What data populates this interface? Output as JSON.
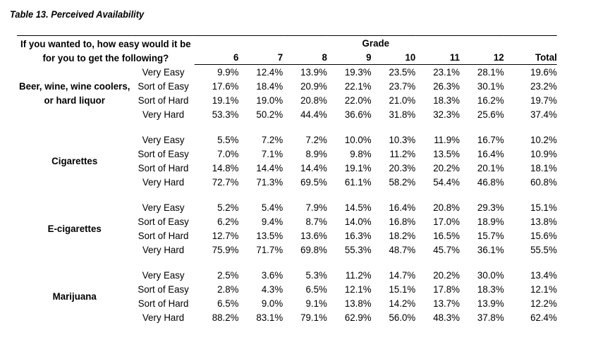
{
  "title": "Table 13. Perceived Availability",
  "question": "If you wanted to, how easy would it be for you to get the following?",
  "grade_header": "Grade",
  "columns": [
    "6",
    "7",
    "8",
    "9",
    "10",
    "11",
    "12",
    "Total"
  ],
  "groups": [
    {
      "substance": "Beer, wine, wine coolers, or hard liquor",
      "rows": [
        {
          "response": "Very Easy",
          "values": [
            "9.9%",
            "12.4%",
            "13.9%",
            "19.3%",
            "23.5%",
            "23.1%",
            "28.1%",
            "19.6%"
          ]
        },
        {
          "response": "Sort of Easy",
          "values": [
            "17.6%",
            "18.4%",
            "20.9%",
            "22.1%",
            "23.7%",
            "26.3%",
            "30.1%",
            "23.2%"
          ]
        },
        {
          "response": "Sort of Hard",
          "values": [
            "19.1%",
            "19.0%",
            "20.8%",
            "22.0%",
            "21.0%",
            "18.3%",
            "16.2%",
            "19.7%"
          ]
        },
        {
          "response": "Very Hard",
          "values": [
            "53.3%",
            "50.2%",
            "44.4%",
            "36.6%",
            "31.8%",
            "32.3%",
            "25.6%",
            "37.4%"
          ]
        }
      ]
    },
    {
      "substance": "Cigarettes",
      "rows": [
        {
          "response": "Very Easy",
          "values": [
            "5.5%",
            "7.2%",
            "7.2%",
            "10.0%",
            "10.3%",
            "11.9%",
            "16.7%",
            "10.2%"
          ]
        },
        {
          "response": "Sort of Easy",
          "values": [
            "7.0%",
            "7.1%",
            "8.9%",
            "9.8%",
            "11.2%",
            "13.5%",
            "16.4%",
            "10.9%"
          ]
        },
        {
          "response": "Sort of Hard",
          "values": [
            "14.8%",
            "14.4%",
            "14.4%",
            "19.1%",
            "20.3%",
            "20.2%",
            "20.1%",
            "18.1%"
          ]
        },
        {
          "response": "Very Hard",
          "values": [
            "72.7%",
            "71.3%",
            "69.5%",
            "61.1%",
            "58.2%",
            "54.4%",
            "46.8%",
            "60.8%"
          ]
        }
      ]
    },
    {
      "substance": "E-cigarettes",
      "rows": [
        {
          "response": "Very Easy",
          "values": [
            "5.2%",
            "5.4%",
            "7.9%",
            "14.5%",
            "16.4%",
            "20.8%",
            "29.3%",
            "15.1%"
          ]
        },
        {
          "response": "Sort of Easy",
          "values": [
            "6.2%",
            "9.4%",
            "8.7%",
            "14.0%",
            "16.8%",
            "17.0%",
            "18.9%",
            "13.8%"
          ]
        },
        {
          "response": "Sort of Hard",
          "values": [
            "12.7%",
            "13.5%",
            "13.6%",
            "16.3%",
            "18.2%",
            "16.5%",
            "15.7%",
            "15.6%"
          ]
        },
        {
          "response": "Very Hard",
          "values": [
            "75.9%",
            "71.7%",
            "69.8%",
            "55.3%",
            "48.7%",
            "45.7%",
            "36.1%",
            "55.5%"
          ]
        }
      ]
    },
    {
      "substance": "Marijuana",
      "rows": [
        {
          "response": "Very Easy",
          "values": [
            "2.5%",
            "3.6%",
            "5.3%",
            "11.2%",
            "14.7%",
            "20.2%",
            "30.0%",
            "13.4%"
          ]
        },
        {
          "response": "Sort of Easy",
          "values": [
            "2.8%",
            "4.3%",
            "6.5%",
            "12.1%",
            "15.1%",
            "17.8%",
            "18.3%",
            "12.1%"
          ]
        },
        {
          "response": "Sort of Hard",
          "values": [
            "6.5%",
            "9.0%",
            "9.1%",
            "13.8%",
            "14.2%",
            "13.7%",
            "13.9%",
            "12.2%"
          ]
        },
        {
          "response": "Very Hard",
          "values": [
            "88.2%",
            "83.1%",
            "79.1%",
            "62.9%",
            "56.0%",
            "48.3%",
            "37.8%",
            "62.4%"
          ]
        }
      ]
    }
  ]
}
